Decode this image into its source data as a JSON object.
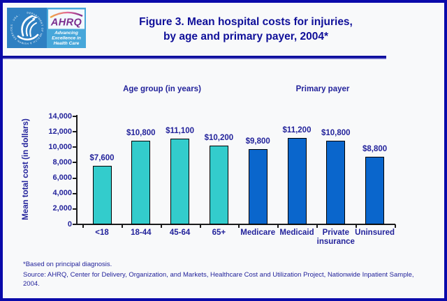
{
  "window": {
    "background": "#f8f9fa",
    "border_color": "#0a0aaa"
  },
  "logo": {
    "ring_text": "DEPARTMENT OF HEALTH & HUMAN SERVICES · USA ·",
    "brand": "AHRQ",
    "tagline": [
      "Advancing",
      "Excellence in",
      "Health Care"
    ],
    "brand_color": "#7b2d8e",
    "left_panel_color": "#2e80c2",
    "right_panel_color": "#47a7da"
  },
  "header": {
    "title_line1": "Figure 3. Mean hospital costs for injuries,",
    "title_line2": "by age and primary payer, 2004*"
  },
  "chart_data": {
    "type": "bar",
    "title": "Figure 3. Mean hospital costs for injuries, by age and primary payer, 2004*",
    "categories": [
      "<18",
      "18-44",
      "45-64",
      "65+",
      "Medicare",
      "Medicaid",
      "Private insurance",
      "Uninsured"
    ],
    "values": [
      7600,
      10800,
      11100,
      10200,
      9800,
      11200,
      10800,
      8800
    ],
    "value_labels": [
      "$7,600",
      "$10,800",
      "$11,100",
      "$10,200",
      "$9,800",
      "$11,200",
      "$10,800",
      "$8,800"
    ],
    "groups": [
      {
        "label": "Age group (in years)",
        "span": [
          0,
          3
        ],
        "color": "#33cccc"
      },
      {
        "label": "Primary payer",
        "span": [
          4,
          7
        ],
        "color": "#0a66cc"
      }
    ],
    "xlabel": "",
    "ylabel": "Mean total cost (in dollars)",
    "ylim": [
      0,
      14000
    ],
    "ytick_step": 2000,
    "yticks": [
      "14,000",
      "12,000",
      "10,000",
      "8,000",
      "6,000",
      "4,000",
      "2,000",
      "0"
    ],
    "grid": false,
    "legend": "none",
    "bar_border_color": "#000000"
  },
  "footnotes": {
    "note": "*Based on principal diagnosis.",
    "source": "Source: AHRQ, Center for Delivery, Organization, and Markets, Healthcare Cost and Utilization Project, Nationwide Inpatient Sample, 2004."
  }
}
